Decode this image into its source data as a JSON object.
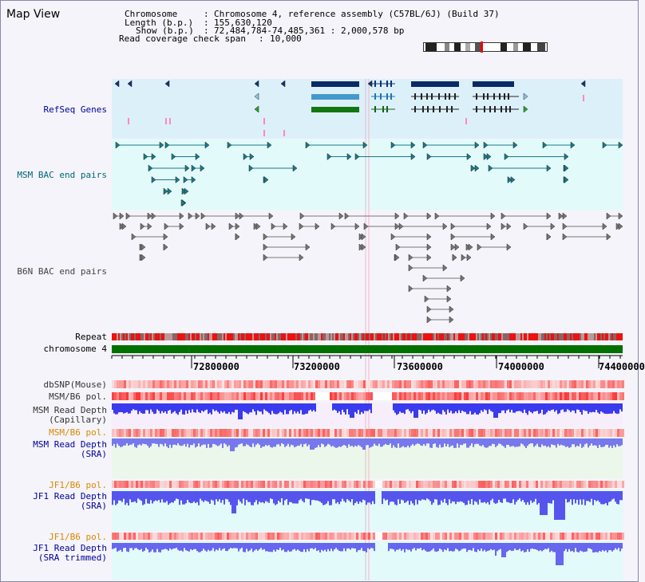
{
  "page": {
    "title": "Map View"
  },
  "header": {
    "chromosome_key": "Chromosome",
    "chromosome_val": "Chromosome 4, reference assembly (C57BL/6J) (Build 37)",
    "length_key": "Length (b.p.)",
    "length_val": "155,630,120",
    "show_key": "Show (b.p.)",
    "show_val": "72,484,784-74,485,361 : 2,000,578 bp",
    "coverage_key": "Read coverage check span",
    "coverage_val": "10,000"
  },
  "tracks": {
    "refseq": "RefSeq Genes",
    "msm_bac": "MSM BAC end pairs",
    "b6n_bac": "B6N BAC end pairs",
    "repeat": "Repeat",
    "chromosome": "chromosome 4",
    "dbsnp": "dbSNP(Mouse)",
    "msm_pol": "MSM/B6 pol.",
    "msm_depth_cap_1": "MSM Read Depth",
    "msm_depth_cap_2": "(Capillary)",
    "msm_pol2": "MSM/B6 pol.",
    "msm_depth_sra_1": "MSM Read Depth",
    "msm_depth_sra_2": "(SRA)",
    "jf1_pol": "JF1/B6 pol.",
    "jf1_depth_sra_1": "JF1 Read Depth",
    "jf1_depth_sra_2": "(SRA)",
    "jf1_pol2": "JF1/B6 pol.",
    "jf1_depth_trim_1": "JF1 Read Depth",
    "jf1_depth_trim_2": "(SRA trimmed)"
  },
  "axis": {
    "ticks": [
      "72800000",
      "73200000",
      "73600000",
      "74000000",
      "74400000"
    ]
  },
  "colors": {
    "refseq_bg": "#dcf0fa",
    "msm_bg": "#e2fafa",
    "chromosome_bar": "#007000",
    "repeat_red": "#ee1111",
    "depth_blue": "#4444ee",
    "label_navy": "#000099",
    "label_teal": "#006677",
    "label_orange": "#dd8800"
  }
}
